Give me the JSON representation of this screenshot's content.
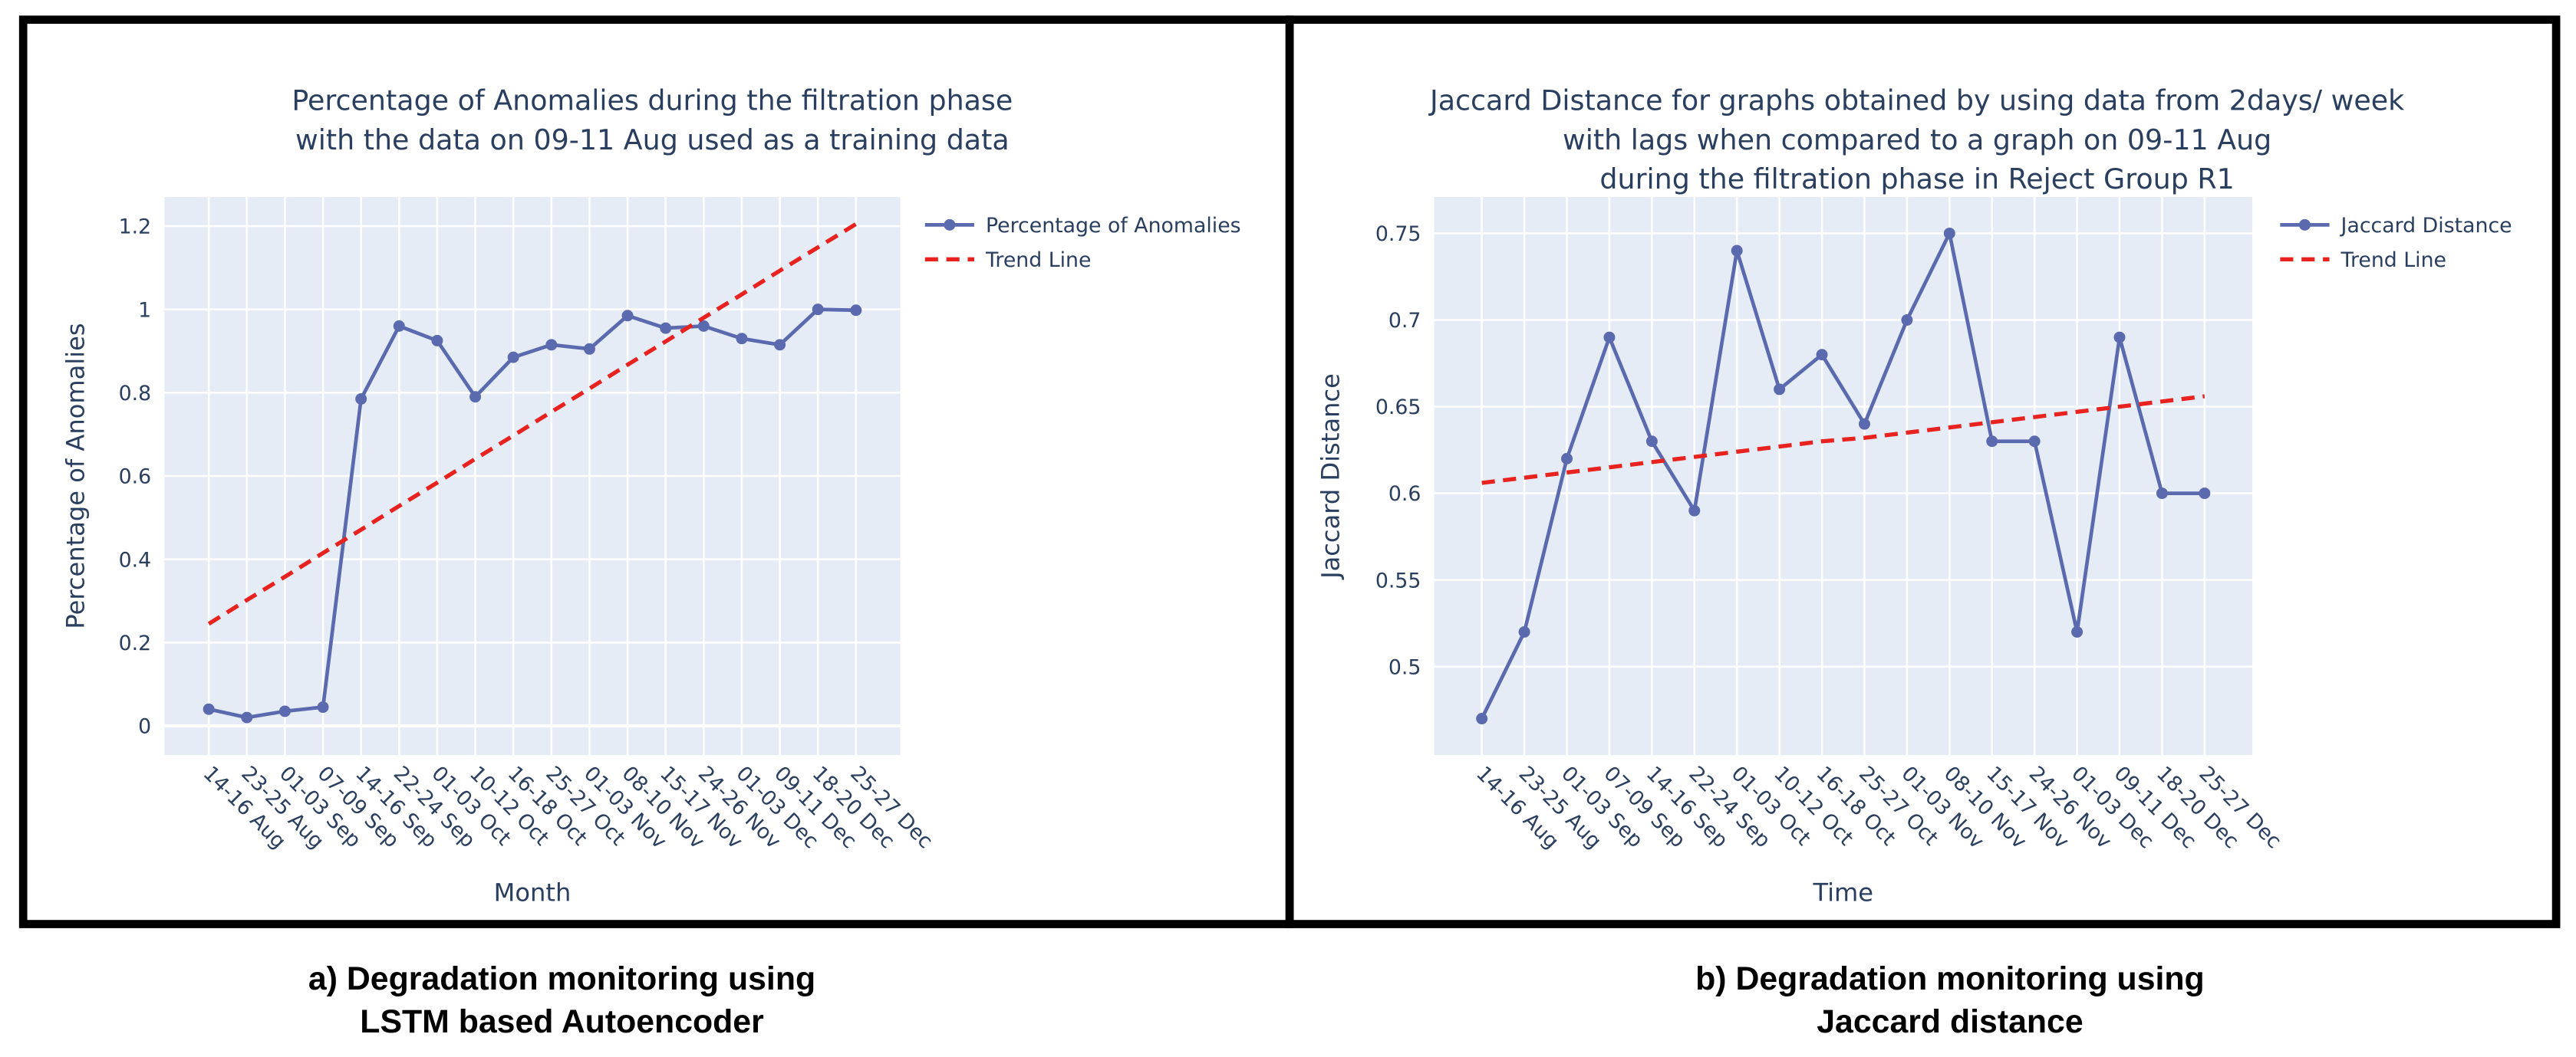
{
  "chart_data": [
    {
      "type": "line",
      "title": [
        "Percentage of Anomalies during the filtration phase",
        "with the data on 09-11 Aug used as a training data"
      ],
      "x_label": "Month",
      "y_label": "Percentage of Anomalies",
      "caption": [
        "a) Degradation monitoring using",
        "LSTM based Autoencoder"
      ],
      "categories": [
        "14-16 Aug",
        "23-25 Aug",
        "01-03 Sep",
        "07-09 Sep",
        "14-16 Sep",
        "22-24 Sep",
        "01-03 Oct",
        "10-12 Oct",
        "16-18 Oct",
        "25-27 Oct",
        "01-03 Nov",
        "08-10 Nov",
        "15-17 Nov",
        "24-26 Nov",
        "01-03 Dec",
        "09-11 Dec",
        "18-20 Dec",
        "25-27 Dec"
      ],
      "series": [
        {
          "name": "Percentage of Anomalies",
          "color": "#5b6aae",
          "markers": true,
          "values": [
            0.04,
            0.02,
            0.035,
            0.045,
            0.785,
            0.96,
            0.925,
            0.79,
            0.885,
            0.915,
            0.905,
            0.985,
            0.955,
            0.96,
            0.93,
            0.915,
            1.0,
            0.998
          ]
        },
        {
          "name": "Trend Line",
          "color": "#e8221f",
          "dash": true,
          "values": [
            0.245,
            0.302,
            0.358,
            0.415,
            0.471,
            0.528,
            0.584,
            0.641,
            0.697,
            0.754,
            0.81,
            0.867,
            0.923,
            0.98,
            1.036,
            1.093,
            1.149,
            1.205
          ]
        }
      ],
      "ylim": [
        -0.07,
        1.27
      ],
      "yticks": [
        0,
        0.2,
        0.4,
        0.6,
        0.8,
        1,
        1.2
      ],
      "grid": true,
      "legend": "right"
    },
    {
      "type": "line",
      "title": [
        "Jaccard Distance for graphs obtained by using data from 2days/ week",
        "with lags when compared to a graph on 09-11 Aug",
        "during the filtration phase in Reject Group R1"
      ],
      "x_label": "Time",
      "y_label": "Jaccard Distance",
      "caption": [
        "b) Degradation monitoring using",
        "Jaccard distance"
      ],
      "categories": [
        "14-16 Aug",
        "23-25 Aug",
        "01-03 Sep",
        "07-09 Sep",
        "14-16 Sep",
        "22-24 Sep",
        "01-03 Oct",
        "10-12 Oct",
        "16-18 Oct",
        "25-27 Oct",
        "01-03 Nov",
        "08-10 Nov",
        "15-17 Nov",
        "24-26 Nov",
        "01-03 Dec",
        "09-11 Dec",
        "18-20 Dec",
        "25-27 Dec"
      ],
      "series": [
        {
          "name": "Jaccard Distance",
          "color": "#5b6aae",
          "markers": true,
          "values": [
            0.47,
            0.52,
            0.62,
            0.69,
            0.63,
            0.59,
            0.74,
            0.66,
            0.68,
            0.64,
            0.7,
            0.75,
            0.63,
            0.63,
            0.52,
            0.69,
            0.6,
            0.6
          ]
        },
        {
          "name": "Trend Line",
          "color": "#e8221f",
          "dash": true,
          "values": [
            0.606,
            0.609,
            0.612,
            0.615,
            0.618,
            0.621,
            0.624,
            0.627,
            0.63,
            0.632,
            0.635,
            0.638,
            0.641,
            0.644,
            0.647,
            0.65,
            0.653,
            0.656
          ]
        }
      ],
      "ylim": [
        0.449,
        0.771
      ],
      "yticks": [
        0.5,
        0.55,
        0.6,
        0.65,
        0.7,
        0.75
      ],
      "grid": true,
      "legend": "right"
    }
  ]
}
